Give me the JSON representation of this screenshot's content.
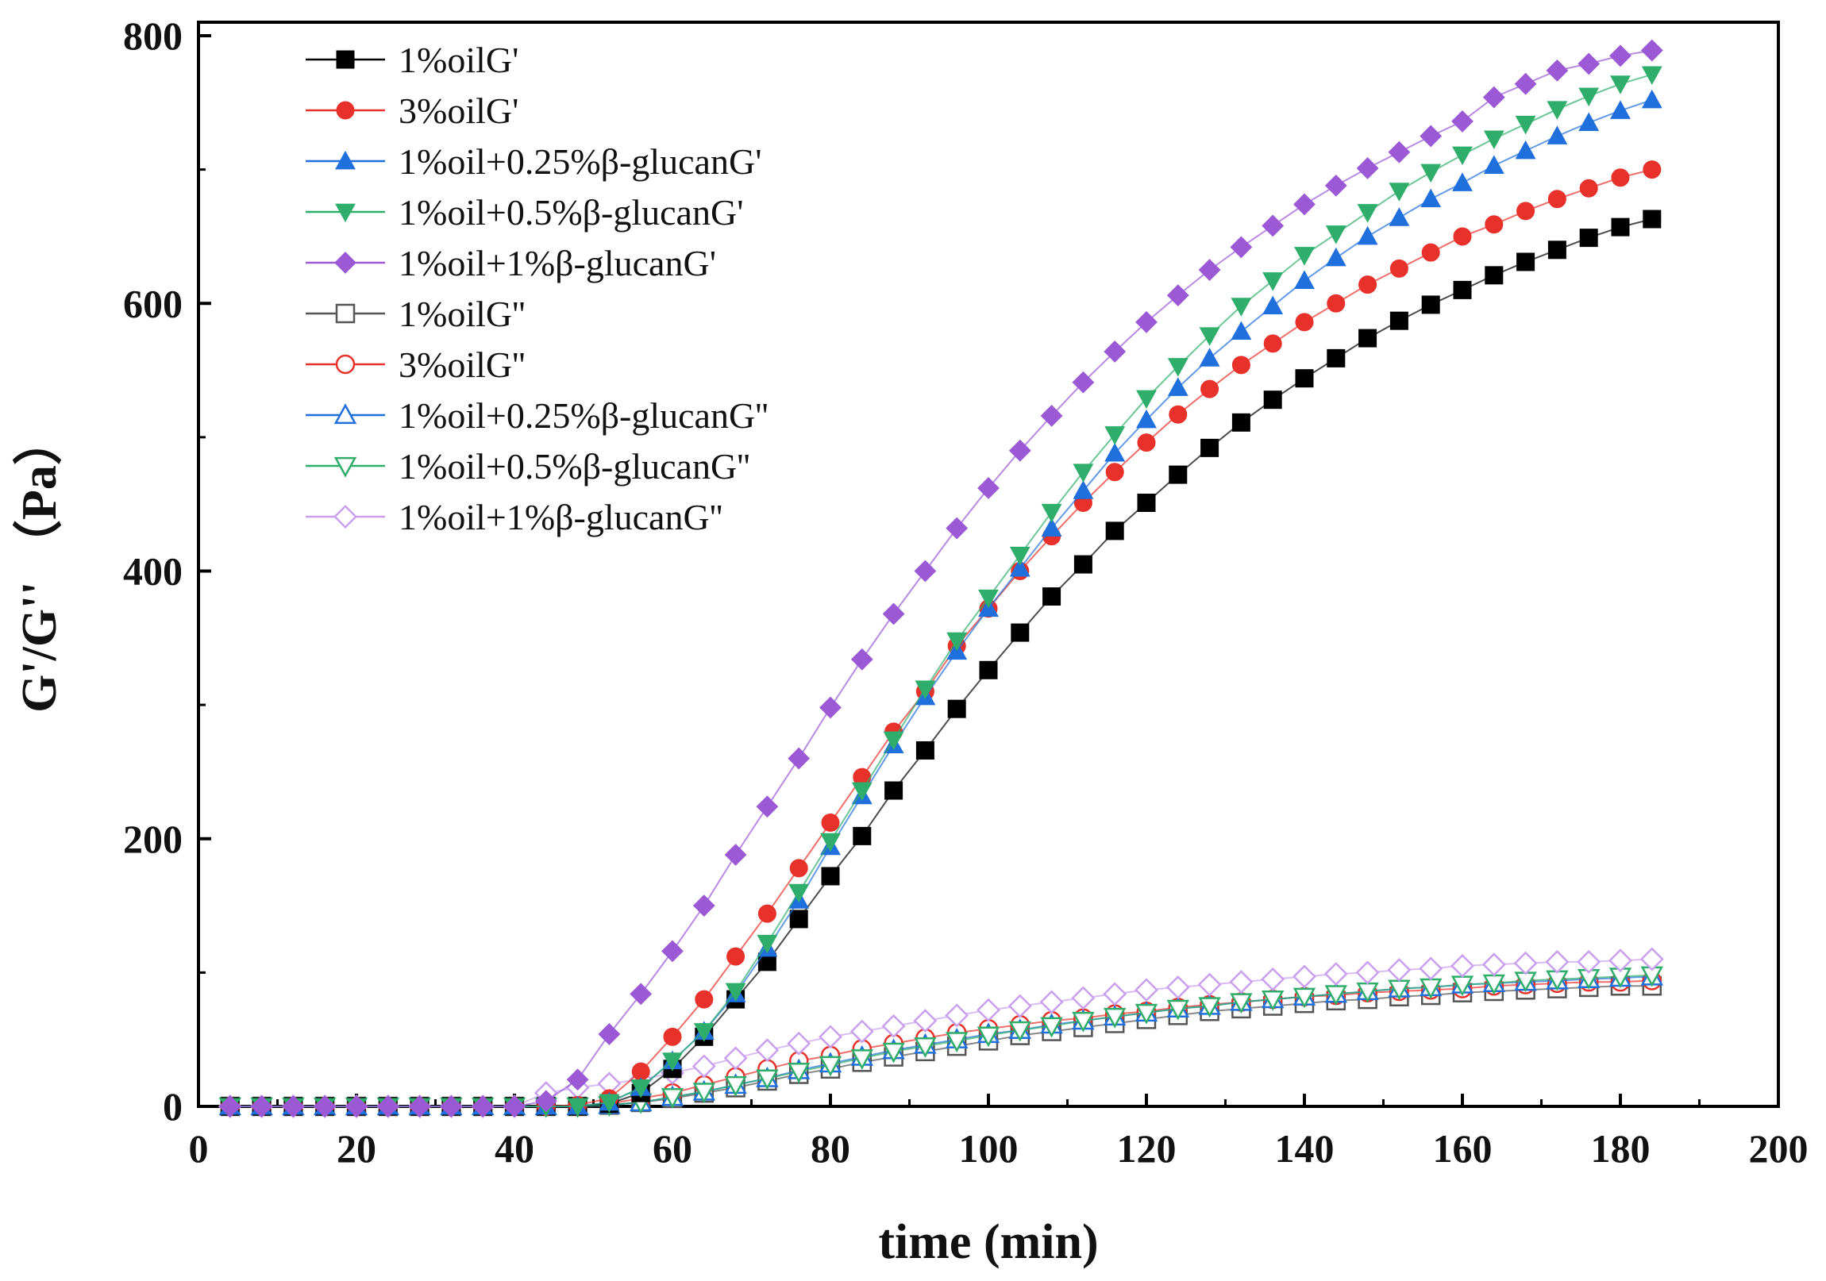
{
  "chart_data": {
    "type": "scatter",
    "xlabel": "time (min)",
    "ylabel": "G'/G'' （Pa）",
    "xlim": [
      0,
      200
    ],
    "ylim": [
      0,
      800
    ],
    "xticks": [
      0,
      20,
      40,
      60,
      80,
      100,
      120,
      140,
      160,
      180,
      200
    ],
    "yticks": [
      0,
      200,
      400,
      600,
      800
    ],
    "x": [
      4,
      8,
      12,
      16,
      20,
      24,
      28,
      32,
      36,
      40,
      44,
      48,
      52,
      56,
      60,
      64,
      68,
      72,
      76,
      80,
      84,
      88,
      92,
      96,
      100,
      104,
      108,
      112,
      116,
      120,
      124,
      128,
      132,
      136,
      140,
      144,
      148,
      152,
      156,
      160,
      164,
      168,
      172,
      176,
      180,
      184
    ],
    "legend_position": "top-left",
    "series": [
      {
        "name": "1%oilG'",
        "marker": "square",
        "filled": true,
        "color": "#000000",
        "values": [
          0,
          0,
          0,
          0,
          0,
          0,
          0,
          0,
          0,
          0,
          0,
          0,
          2,
          10,
          28,
          52,
          80,
          108,
          140,
          172,
          202,
          236,
          266,
          297,
          326,
          354,
          381,
          405,
          430,
          451,
          472,
          492,
          511,
          528,
          544,
          559,
          574,
          587,
          599,
          610,
          621,
          631,
          640,
          649,
          657,
          663
        ]
      },
      {
        "name": "3%oilG'",
        "marker": "circle",
        "filled": true,
        "color": "#e8312a",
        "values": [
          0,
          0,
          0,
          0,
          0,
          0,
          0,
          0,
          0,
          0,
          0,
          1,
          6,
          26,
          52,
          80,
          112,
          144,
          178,
          212,
          246,
          280,
          310,
          344,
          372,
          400,
          426,
          451,
          474,
          496,
          517,
          536,
          554,
          570,
          586,
          600,
          614,
          626,
          638,
          650,
          659,
          669,
          678,
          686,
          694,
          700
        ]
      },
      {
        "name": "1%oil+0.25%β-glucanG'",
        "marker": "triangle-up",
        "filled": true,
        "color": "#1f6fdc",
        "values": [
          0,
          0,
          0,
          0,
          0,
          0,
          0,
          0,
          0,
          0,
          0,
          0,
          3,
          14,
          34,
          56,
          84,
          118,
          154,
          194,
          232,
          270,
          306,
          340,
          372,
          402,
          432,
          460,
          488,
          513,
          537,
          559,
          579,
          598,
          617,
          634,
          650,
          664,
          678,
          690,
          703,
          714,
          725,
          735,
          744,
          752
        ]
      },
      {
        "name": "1%oil+0.5%β-glucanG'",
        "marker": "triangle-down",
        "filled": true,
        "color": "#2fae6b",
        "values": [
          0,
          0,
          0,
          0,
          0,
          0,
          0,
          0,
          0,
          0,
          0,
          0,
          3,
          14,
          34,
          56,
          86,
          122,
          160,
          198,
          236,
          274,
          312,
          348,
          380,
          412,
          444,
          474,
          502,
          529,
          553,
          576,
          598,
          617,
          636,
          652,
          668,
          684,
          698,
          711,
          723,
          734,
          745,
          755,
          764,
          771
        ]
      },
      {
        "name": "1%oil+1%β-glucanG'",
        "marker": "diamond",
        "filled": true,
        "color": "#9b59d6",
        "values": [
          0,
          0,
          0,
          0,
          0,
          0,
          0,
          0,
          0,
          0,
          4,
          20,
          54,
          84,
          116,
          150,
          188,
          224,
          260,
          298,
          334,
          368,
          400,
          432,
          462,
          490,
          516,
          541,
          564,
          586,
          606,
          625,
          642,
          658,
          674,
          688,
          701,
          713,
          725,
          736,
          754,
          764,
          774,
          779,
          785,
          789
        ]
      },
      {
        "name": "1%oilG''",
        "marker": "square",
        "filled": false,
        "color": "#555555",
        "values": [
          0,
          0,
          0,
          0,
          0,
          0,
          0,
          0,
          0,
          0,
          0,
          0,
          1,
          3,
          6,
          10,
          14,
          19,
          24,
          28,
          33,
          37,
          41,
          45,
          49,
          53,
          56,
          59,
          62,
          65,
          68,
          71,
          73,
          75,
          77,
          79,
          80,
          82,
          83,
          85,
          86,
          87,
          88,
          89,
          90,
          90
        ]
      },
      {
        "name": "3%oilG''",
        "marker": "circle",
        "filled": false,
        "color": "#e8312a",
        "values": [
          0,
          0,
          0,
          0,
          0,
          0,
          0,
          0,
          0,
          0,
          0,
          0,
          2,
          6,
          10,
          16,
          22,
          28,
          34,
          38,
          43,
          47,
          51,
          55,
          58,
          61,
          64,
          66,
          69,
          71,
          74,
          76,
          78,
          80,
          82,
          83,
          85,
          86,
          87,
          88,
          90,
          91,
          92,
          93,
          93,
          94
        ]
      },
      {
        "name": "1%oil+0.25%β-glucanG''",
        "marker": "triangle-up",
        "filled": false,
        "color": "#1f6fdc",
        "values": [
          0,
          0,
          0,
          0,
          0,
          0,
          0,
          0,
          0,
          0,
          0,
          0,
          1,
          3,
          7,
          11,
          16,
          21,
          27,
          32,
          37,
          42,
          46,
          50,
          54,
          57,
          61,
          64,
          67,
          70,
          73,
          75,
          78,
          80,
          82,
          84,
          86,
          88,
          89,
          91,
          92,
          93,
          94,
          95,
          96,
          97
        ]
      },
      {
        "name": "1%oil+0.5%β-glucanG''",
        "marker": "triangle-down",
        "filled": false,
        "color": "#2fae6b",
        "values": [
          0,
          0,
          0,
          0,
          0,
          0,
          0,
          0,
          0,
          0,
          0,
          0,
          1,
          3,
          7,
          11,
          16,
          21,
          26,
          31,
          36,
          41,
          45,
          49,
          53,
          57,
          60,
          64,
          67,
          70,
          73,
          75,
          78,
          80,
          82,
          84,
          86,
          88,
          89,
          91,
          92,
          94,
          95,
          96,
          97,
          98
        ]
      },
      {
        "name": "1%oil+1%β-glucanG''",
        "marker": "diamond",
        "filled": false,
        "color": "#c9a0ee",
        "values": [
          0,
          0,
          0,
          0,
          0,
          0,
          0,
          0,
          0,
          0,
          10,
          14,
          17,
          20,
          25,
          30,
          36,
          42,
          47,
          52,
          56,
          60,
          64,
          68,
          72,
          75,
          78,
          81,
          84,
          87,
          89,
          91,
          93,
          95,
          97,
          99,
          100,
          102,
          103,
          105,
          106,
          107,
          108,
          108,
          109,
          110
        ]
      }
    ]
  }
}
